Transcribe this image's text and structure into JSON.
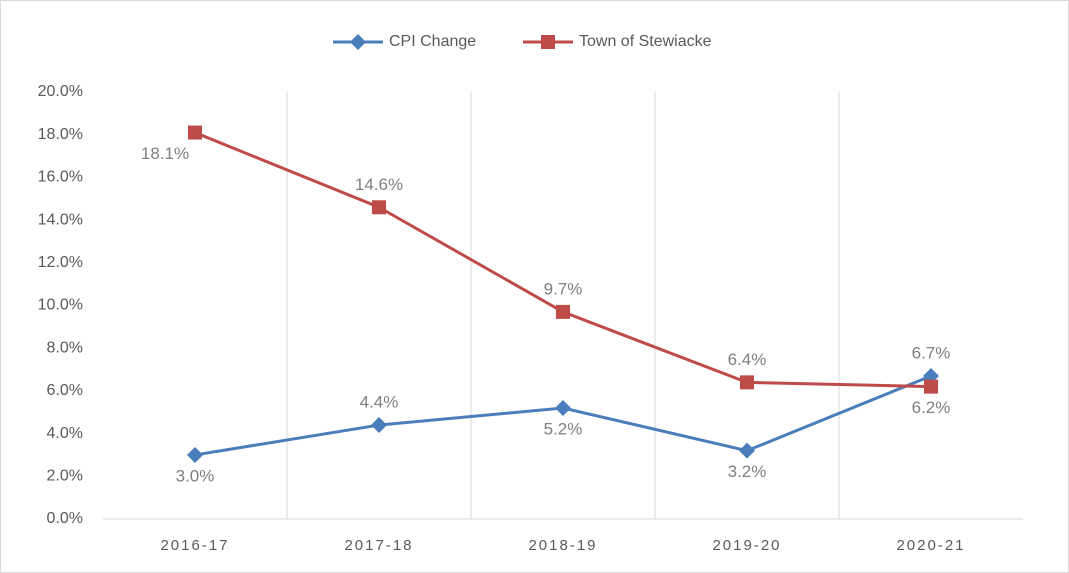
{
  "chart_data": {
    "type": "line",
    "categories": [
      "2016-17",
      "2017-18",
      "2018-19",
      "2019-20",
      "2020-21"
    ],
    "series": [
      {
        "name": "CPI Change",
        "color": "#4a7ebb",
        "marker": "diamond",
        "values": [
          3.0,
          4.4,
          5.2,
          3.2,
          6.7
        ],
        "value_labels": [
          "3.0%",
          "4.4%",
          "5.2%",
          "3.2%",
          "6.7%"
        ]
      },
      {
        "name": "Town of Stewiacke",
        "color": "#be4b48",
        "marker": "square",
        "values": [
          18.1,
          14.6,
          9.7,
          6.4,
          6.2
        ],
        "value_labels": [
          "18.1%",
          "14.6%",
          "9.7%",
          "6.4%",
          "6.2%"
        ]
      }
    ],
    "ylim": [
      0,
      20
    ],
    "yticks": [
      {
        "value": 0,
        "label": "0.0%"
      },
      {
        "value": 2,
        "label": "2.0%"
      },
      {
        "value": 4,
        "label": "4.0%"
      },
      {
        "value": 6,
        "label": "6.0%"
      },
      {
        "value": 8,
        "label": "8.0%"
      },
      {
        "value": 10,
        "label": "10.0%"
      },
      {
        "value": 12,
        "label": "12.0%"
      },
      {
        "value": 14,
        "label": "14.0%"
      },
      {
        "value": 16,
        "label": "16.0%"
      },
      {
        "value": 18,
        "label": "18.0%"
      },
      {
        "value": 20,
        "label": "20.0%"
      }
    ],
    "grid": "vertical-category",
    "legend": "top"
  }
}
